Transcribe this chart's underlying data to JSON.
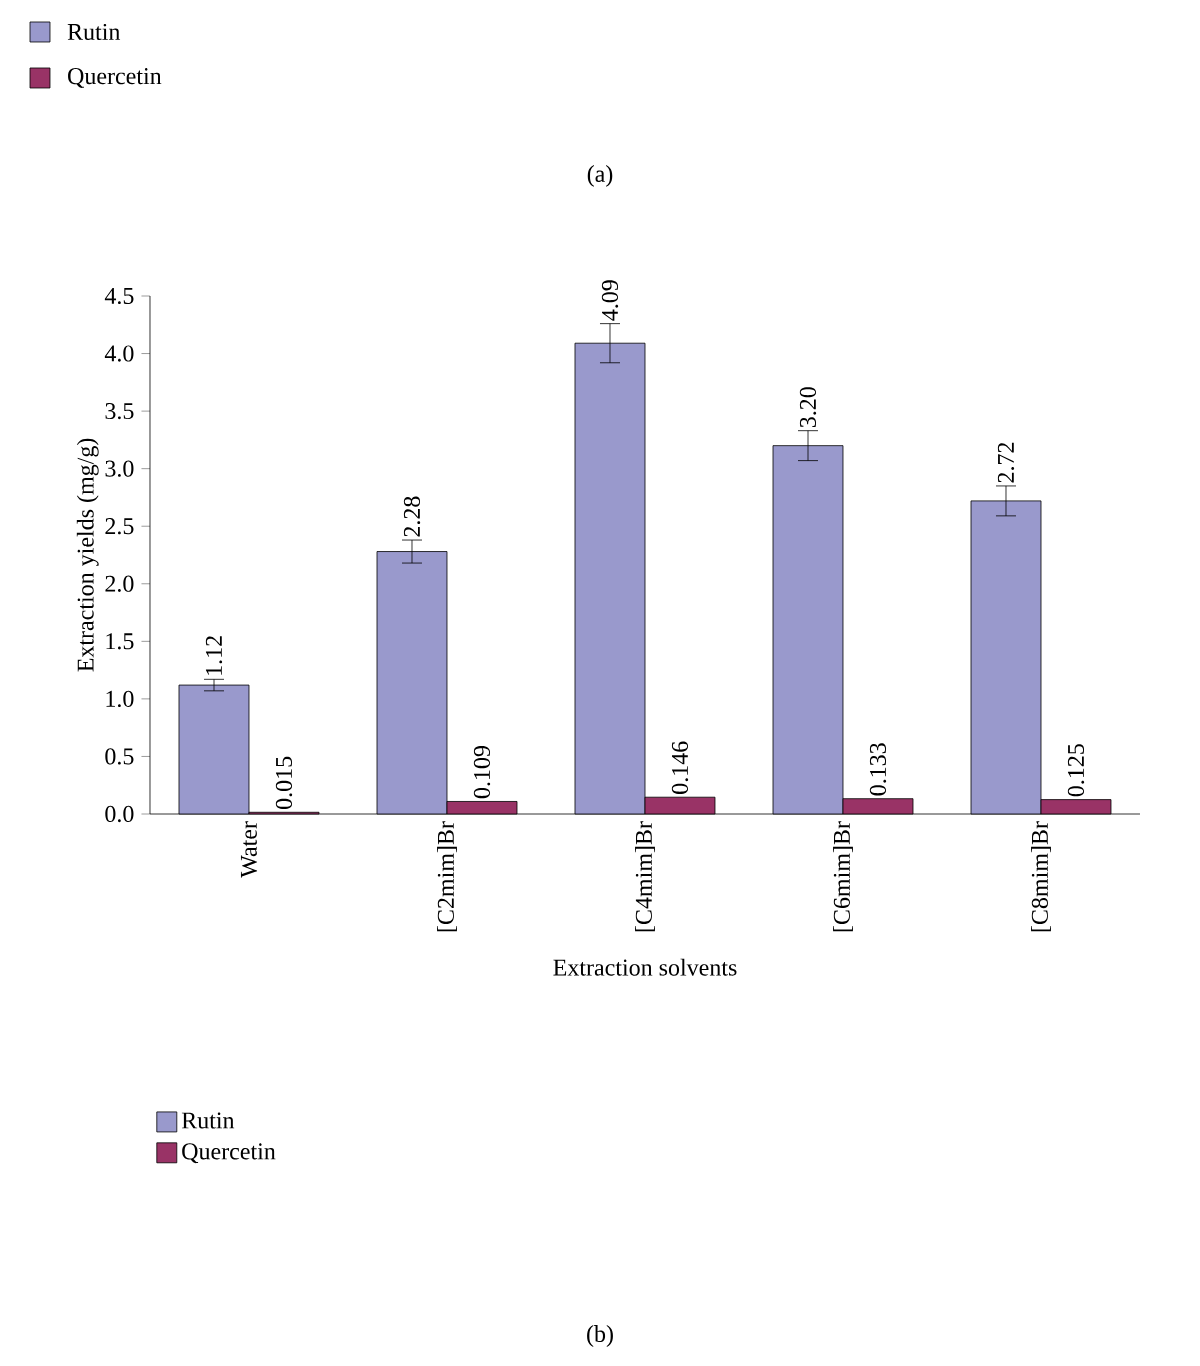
{
  "chart_data": {
    "type": "bar",
    "xlabel": "Extraction solvents",
    "ylabel": "Extraction yields (mg/g)",
    "categories": [
      "Water",
      "[C2mim]Br",
      "[C4mim]Br",
      "[C6mim]Br",
      "[C8mim]Br"
    ],
    "series": [
      {
        "name": "Rutin",
        "color": "#9999cc",
        "values": [
          1.12,
          2.28,
          4.09,
          3.2,
          2.72
        ],
        "errors": [
          0.05,
          0.1,
          0.17,
          0.13,
          0.13
        ],
        "value_labels": [
          "1.12",
          "2.28",
          "4.09",
          "3.20",
          "2.72"
        ]
      },
      {
        "name": "Quercetin",
        "color": "#993366",
        "values": [
          0.015,
          0.109,
          0.146,
          0.133,
          0.125
        ],
        "value_labels": [
          "0.015",
          "0.109",
          "0.146",
          "0.133",
          "0.125"
        ]
      }
    ],
    "ylim": [
      0,
      4.5
    ],
    "yticks": [
      {
        "value": 0,
        "label": "0.0"
      },
      {
        "value": 0.5,
        "label": "0.5"
      },
      {
        "value": 1,
        "label": "1.0"
      },
      {
        "value": 1.5,
        "label": "1.5"
      },
      {
        "value": 2,
        "label": "2.0"
      },
      {
        "value": 2.5,
        "label": "2.5"
      },
      {
        "value": 3,
        "label": "3.0"
      },
      {
        "value": 3.5,
        "label": "3.5"
      },
      {
        "value": 4,
        "label": "4.0"
      },
      {
        "value": 4.5,
        "label": "4.5"
      }
    ],
    "legend": "bottom left",
    "grid": false,
    "annotations": [
      "Rutin",
      "Quercetin",
      "(a)",
      "(b)"
    ]
  }
}
